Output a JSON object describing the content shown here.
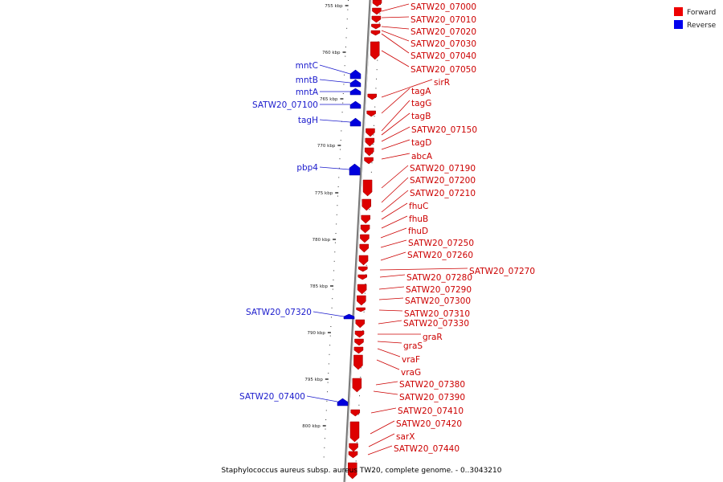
{
  "legend": [
    {
      "label": "Forward",
      "color": "#ee0000"
    },
    {
      "label": "Reverse",
      "color": "#0000ee"
    }
  ],
  "caption": "Staphylococcus aureus subsp. aureus TW20, complete genome. - 0..3043210",
  "axis_ticks": [
    "755 kbp",
    "760 kbp",
    "765 kbp",
    "770 kbp",
    "775 kbp",
    "780 kbp",
    "785 kbp",
    "790 kbp",
    "795 kbp",
    "800 kbp"
  ],
  "forward_labels": [
    "SATW20_07000",
    "SATW20_07010",
    "SATW20_07020",
    "SATW20_07030",
    "SATW20_07040",
    "SATW20_07050",
    "sirR",
    "tagA",
    "tagG",
    "tagB",
    "SATW20_07150",
    "tagD",
    "abcA",
    "SATW20_07190",
    "SATW20_07200",
    "SATW20_07210",
    "fhuC",
    "fhuB",
    "fhuD",
    "SATW20_07250",
    "SATW20_07260",
    "SATW20_07270",
    "SATW20_07280",
    "SATW20_07290",
    "SATW20_07300",
    "SATW20_07310",
    "SATW20_07330",
    "graR",
    "graS",
    "vraF",
    "vraG",
    "SATW20_07380",
    "SATW20_07390",
    "SATW20_07410",
    "SATW20_07420",
    "sarX",
    "SATW20_07440"
  ],
  "reverse_labels": [
    "mntC",
    "mntB",
    "mntA",
    "SATW20_07100",
    "tagH",
    "pbp4",
    "SATW20_07320",
    "SATW20_07400"
  ]
}
